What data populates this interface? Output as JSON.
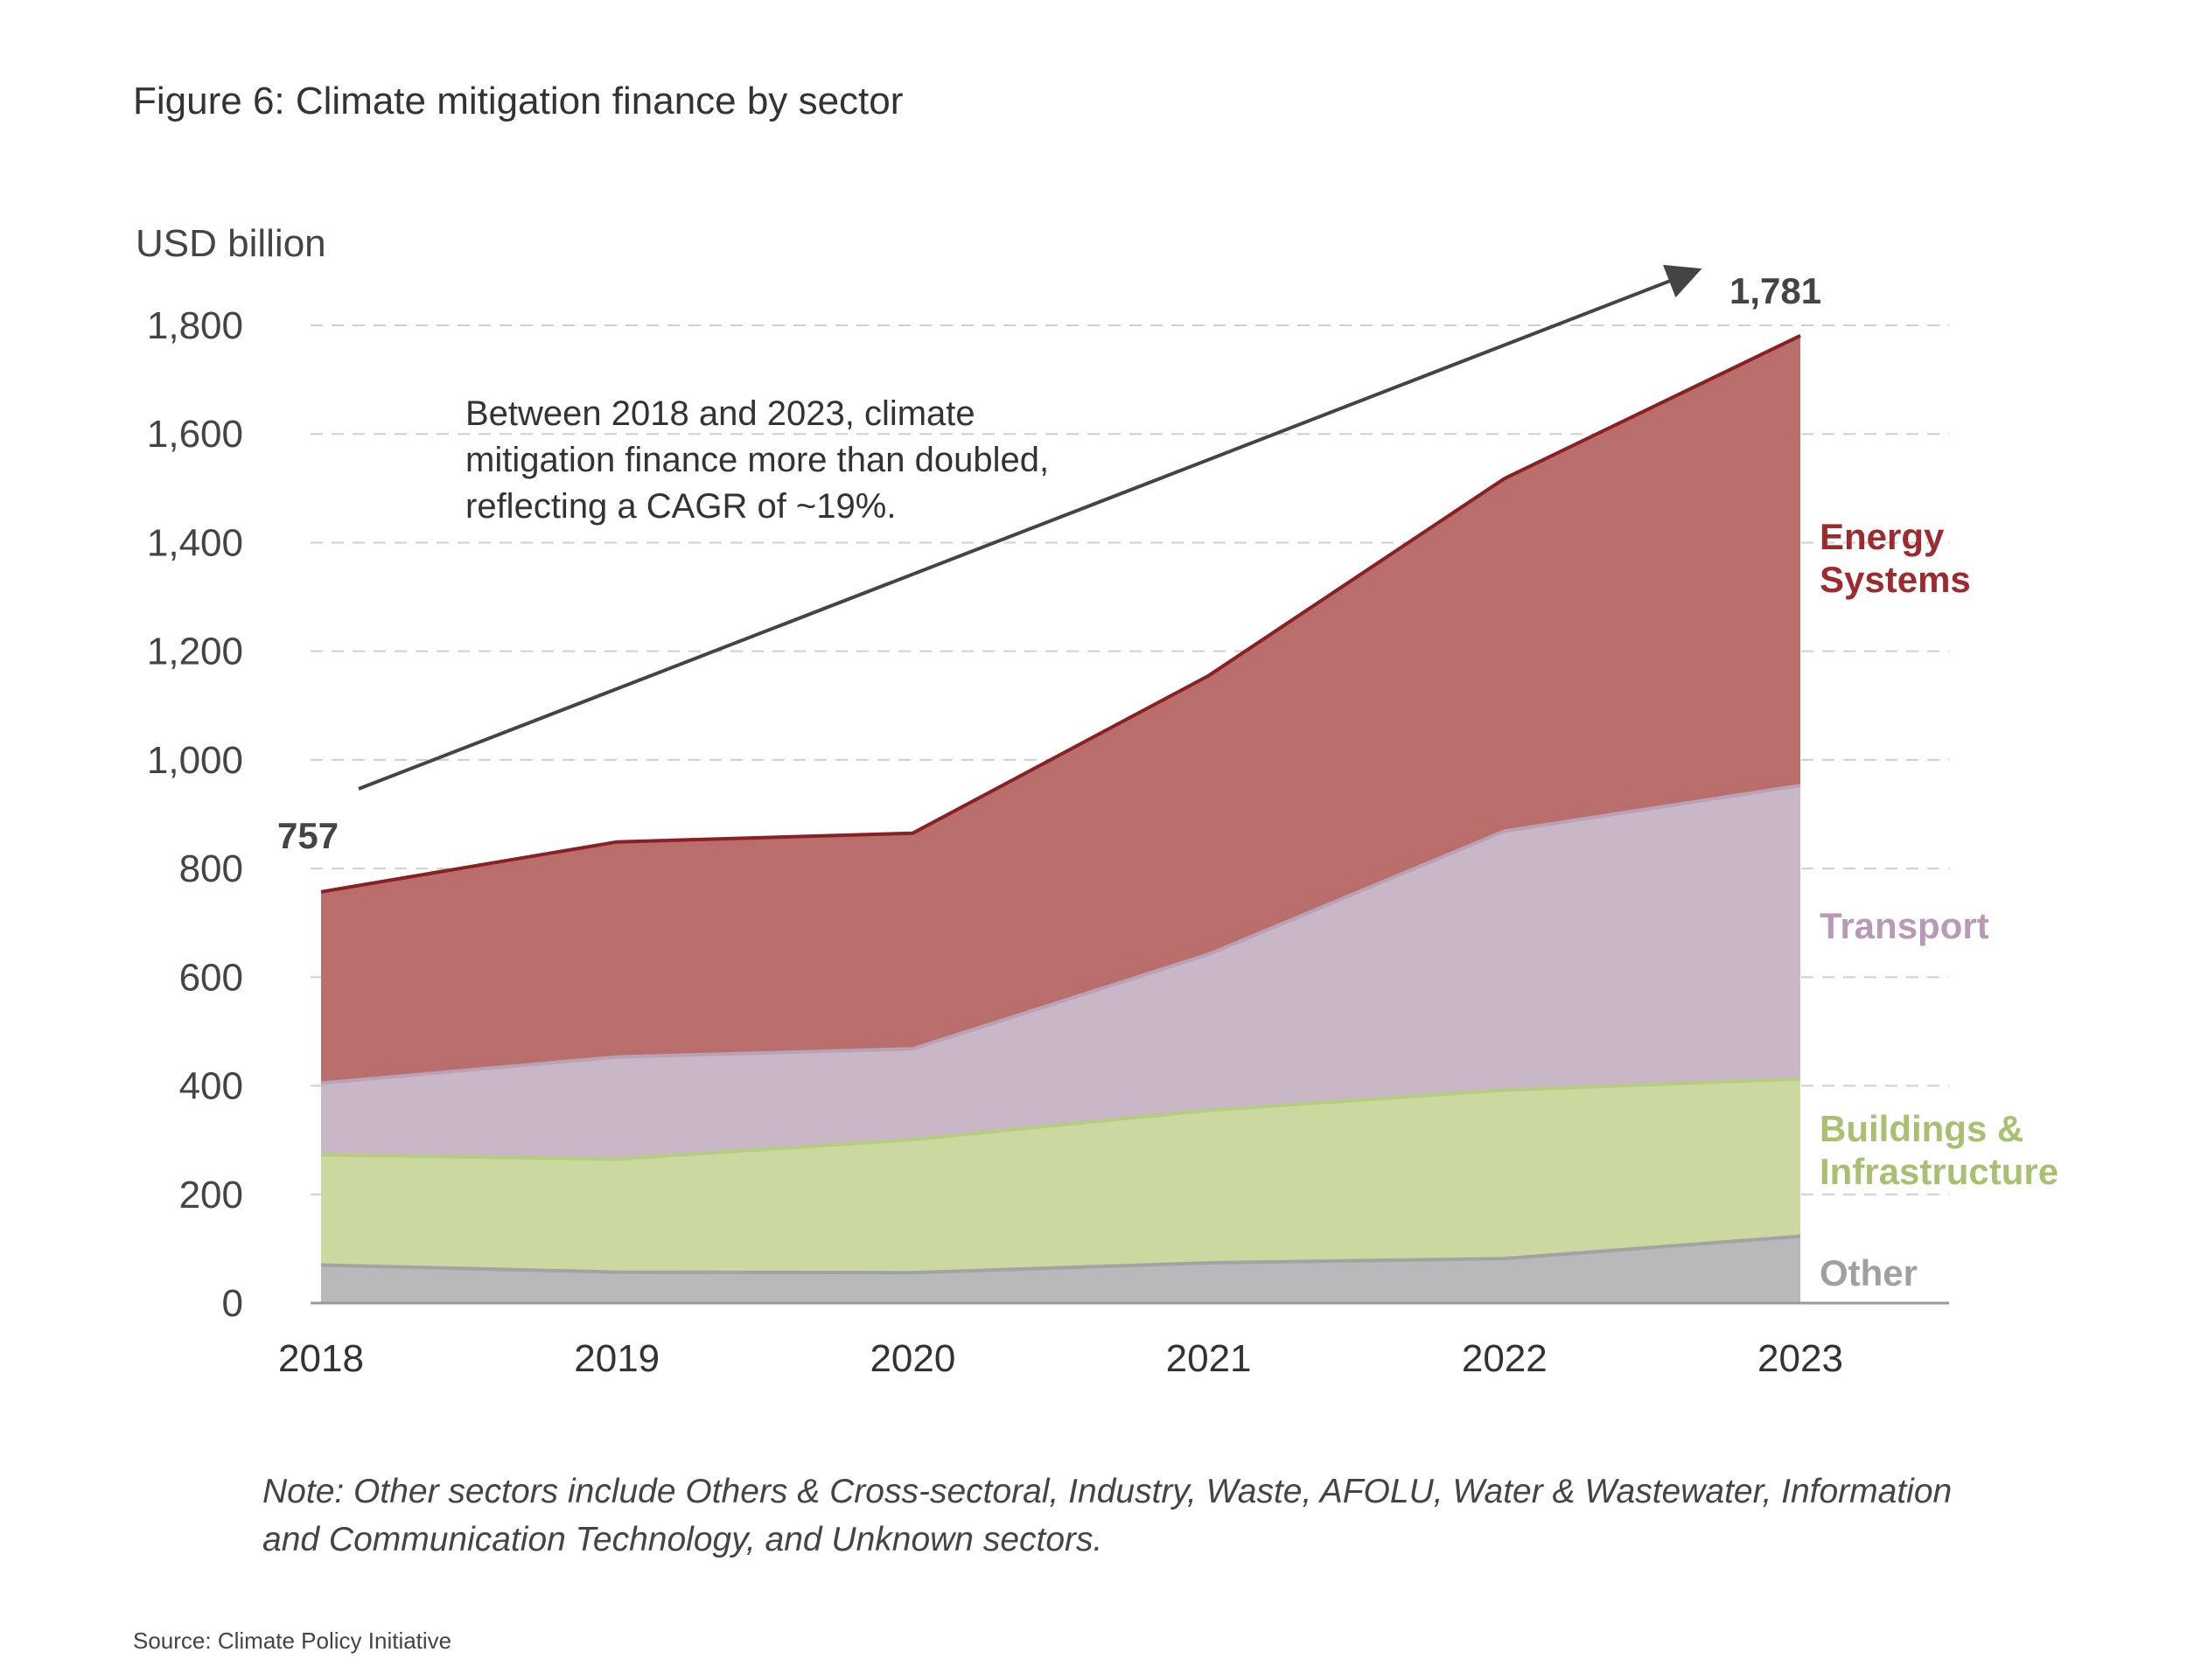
{
  "chart_data": {
    "type": "area",
    "stacked": true,
    "title": "Figure 6: Climate mitigation finance by sector",
    "unit_label": "USD billion",
    "x": [
      "2018",
      "2019",
      "2020",
      "2021",
      "2022",
      "2023"
    ],
    "ylim": [
      0,
      1800
    ],
    "yticks": [
      "0",
      "200",
      "400",
      "600",
      "800",
      "1,000",
      "1,200",
      "1,400",
      "1,600",
      "1,800"
    ],
    "grid": true,
    "series": [
      {
        "name": "Other",
        "values": [
          70,
          57,
          56,
          74,
          82,
          123
        ],
        "color": "#b9b9bb",
        "line_color": "#a3a3a5",
        "label_color": "#a0a0a2"
      },
      {
        "name": "Buildings & Infrastructure",
        "values": [
          203,
          208,
          245,
          281,
          310,
          290
        ],
        "color": "#cbd8a0",
        "line_color": "#b6cc7e",
        "label_color": "#a8c070"
      },
      {
        "name": "Transport",
        "values": [
          132,
          188,
          167,
          287,
          477,
          540
        ],
        "color": "#c9b7c8",
        "line_color": "#b8a2b8",
        "label_color": "#b89ab6"
      },
      {
        "name": "Energy Systems",
        "values": [
          352,
          396,
          397,
          513,
          649,
          828
        ],
        "color": "#b96e6c",
        "line_color": "#8a1f24",
        "label_color": "#9c2a2e"
      }
    ],
    "series_labels": {
      "energy": [
        "Energy",
        "Systems"
      ],
      "transport": [
        "Transport"
      ],
      "buildings": [
        "Buildings &",
        "Infrastructure"
      ],
      "other": [
        "Other"
      ]
    },
    "annotations": {
      "start_value": "757",
      "end_value": "1,781",
      "text_lines": [
        "Between 2018 and 2023, climate",
        "mitigation finance more than doubled,",
        "reflecting a CAGR of ~19%."
      ]
    },
    "note_lines": [
      "Note: Other sectors include Others & Cross-sectoral, Industry, Waste, AFOLU, Water & Wastewater, Information",
      "and Communication Technology, and Unknown sectors."
    ],
    "source": "Source: Climate Policy Initiative"
  }
}
